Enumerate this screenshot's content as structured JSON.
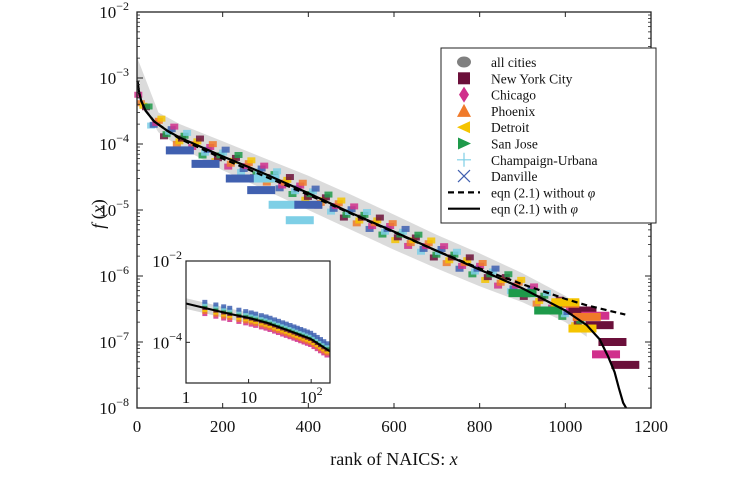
{
  "chart_data": {
    "type": "scatter",
    "title": "",
    "xlabel": "rank of NAICS: x",
    "ylabel": "f(x)",
    "xlim": [
      0,
      1200
    ],
    "ylim": [
      1e-08,
      0.01
    ],
    "yscale": "log",
    "grid": false,
    "legend_position": "top-right",
    "x_ticks": [
      0,
      200,
      400,
      600,
      800,
      1000,
      1200
    ],
    "x_tick_labels": [
      "0",
      "200",
      "400",
      "600",
      "800",
      "1000",
      "1200"
    ],
    "y_ticks": [
      0.01,
      0.001,
      0.0001,
      1e-05,
      1e-06,
      1e-07,
      1e-08
    ],
    "y_tick_labels": [
      {
        "base": "10",
        "exp": "−2"
      },
      {
        "base": "10",
        "exp": "−3"
      },
      {
        "base": "10",
        "exp": "−4"
      },
      {
        "base": "10",
        "exp": "−5"
      },
      {
        "base": "10",
        "exp": "−6"
      },
      {
        "base": "10",
        "exp": "−7"
      },
      {
        "base": "10",
        "exp": "−8"
      }
    ],
    "legend": [
      {
        "label": "all cities",
        "marker": "circle",
        "color": "#808080"
      },
      {
        "label": "New York City",
        "marker": "square",
        "color": "#6b0f3a"
      },
      {
        "label": "Chicago",
        "marker": "diamond",
        "color": "#d0308c"
      },
      {
        "label": "Phoenix",
        "marker": "triangle-up",
        "color": "#f07a2a"
      },
      {
        "label": "Detroit",
        "marker": "triangle-left",
        "color": "#f5c400"
      },
      {
        "label": "San Jose",
        "marker": "triangle-right",
        "color": "#1e9a4a"
      },
      {
        "label": "Champaign-Urbana",
        "marker": "plus",
        "color": "#7ecfe6"
      },
      {
        "label": "Danville",
        "marker": "x",
        "color": "#4060b0"
      },
      {
        "label": "eqn (2.1) without φ",
        "marker": "dashed-line",
        "color": "#000000"
      },
      {
        "label": "eqn (2.1) with φ",
        "marker": "solid-line",
        "color": "#000000"
      }
    ],
    "series": [
      {
        "name": "eqn (2.1) with φ",
        "style": "solid",
        "x": [
          1,
          5,
          10,
          20,
          40,
          70,
          100,
          150,
          200,
          300,
          400,
          500,
          600,
          700,
          800,
          900,
          1000,
          1050,
          1080,
          1100,
          1115,
          1125,
          1135,
          1142
        ],
        "y": [
          0.0009,
          0.0006,
          0.00045,
          0.00032,
          0.00022,
          0.00016,
          0.000125,
          9e-05,
          6.5e-05,
          3.5e-05,
          1.8e-05,
          9e-06,
          4.7e-06,
          2.4e-06,
          1.25e-06,
          6.5e-07,
          3e-07,
          1.8e-07,
          1.1e-07,
          6e-08,
          3.5e-08,
          2e-08,
          1.2e-08,
          1e-08
        ]
      },
      {
        "name": "eqn (2.1) without φ",
        "style": "dashed",
        "x": [
          1,
          5,
          10,
          20,
          40,
          70,
          100,
          150,
          200,
          300,
          400,
          500,
          600,
          700,
          800,
          900,
          1000,
          1050,
          1100,
          1140
        ],
        "y": [
          0.0009,
          0.0006,
          0.00045,
          0.00032,
          0.00022,
          0.00016,
          0.00012,
          8.5e-05,
          6e-05,
          3.2e-05,
          1.7e-05,
          8.8e-06,
          4.6e-06,
          2.4e-06,
          1.3e-06,
          7.5e-07,
          4.5e-07,
          3.6e-07,
          3e-07,
          2.6e-07
        ]
      },
      {
        "name": "all cities",
        "style": "band",
        "x": [
          1,
          50,
          100,
          200,
          300,
          400,
          500,
          600,
          700,
          800,
          900,
          1000,
          1050
        ],
        "y_low": [
          0.0005,
          0.00015,
          9e-05,
          4e-05,
          2e-05,
          1e-05,
          5e-06,
          2.5e-06,
          1.3e-06,
          7e-07,
          4e-07,
          2e-07,
          1.2e-07
        ],
        "y_high": [
          0.002,
          0.0003,
          0.0002,
          0.00011,
          6e-05,
          3.3e-05,
          1.7e-05,
          8.5e-06,
          4.2e-06,
          2.2e-06,
          1.1e-06,
          5e-07,
          3e-07
        ]
      },
      {
        "name": "New York City",
        "x": [
          1040,
          1080,
          1110,
          1140
        ],
        "y": [
          3e-07,
          1.8e-07,
          1e-07,
          4.5e-08
        ]
      },
      {
        "name": "Chicago",
        "x": [
          1070,
          1095
        ],
        "y": [
          2.5e-07,
          6.5e-08
        ]
      },
      {
        "name": "Phoenix",
        "x": [
          1000,
          1050
        ],
        "y": [
          3.8e-07,
          2.4e-07
        ]
      },
      {
        "name": "Detroit",
        "x": [
          1000,
          1040
        ],
        "y": [
          4e-07,
          1.6e-07
        ]
      },
      {
        "name": "San Jose",
        "x": [
          900,
          960
        ],
        "y": [
          5.5e-07,
          3e-07
        ]
      },
      {
        "name": "Champaign-Urbana",
        "x": [
          300,
          340,
          380
        ],
        "y": [
          3e-05,
          1.2e-05,
          7e-06
        ]
      },
      {
        "name": "Danville",
        "x": [
          100,
          160,
          240,
          290,
          400
        ],
        "y": [
          8e-05,
          5e-05,
          3e-05,
          2e-05,
          1.2e-05
        ]
      }
    ],
    "inset": {
      "xscale": "log",
      "yscale": "log",
      "xlim": [
        1,
        200
      ],
      "ylim": [
        1e-05,
        0.01
      ],
      "x_ticks": [
        1,
        10,
        100
      ],
      "x_tick_labels": [
        {
          "base": "1",
          "exp": ""
        },
        {
          "base": "10",
          "exp": ""
        },
        {
          "base": "10",
          "exp": "2"
        }
      ],
      "y_ticks": [
        0.01,
        0.0001
      ],
      "y_tick_labels": [
        {
          "base": "10",
          "exp": "−2"
        },
        {
          "base": "10",
          "exp": "−4"
        }
      ],
      "curve_x": [
        1,
        2,
        5,
        10,
        20,
        50,
        100,
        200
      ],
      "curve_y": [
        0.0009,
        0.0007,
        0.0005,
        0.0004,
        0.0003,
        0.00018,
        0.00012,
        6e-05
      ]
    }
  }
}
